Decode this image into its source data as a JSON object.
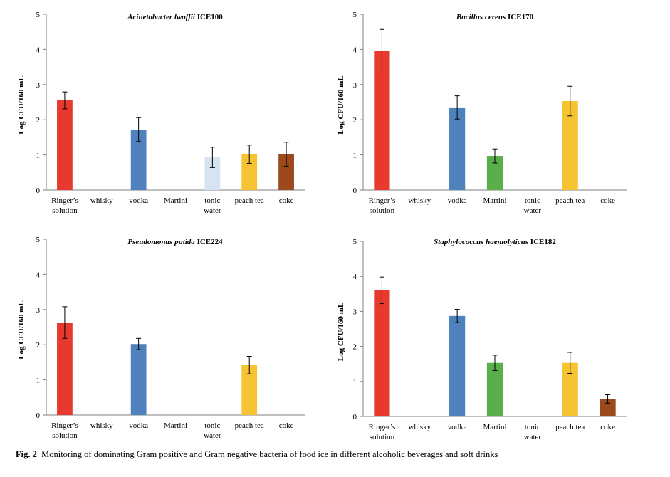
{
  "caption": {
    "label": "Fig. 2",
    "text": "Monitoring of dominating Gram positive and Gram negative bacteria of food ice in different alcoholic beverages and soft drinks"
  },
  "colors": {
    "Ringer's solution": "#e8392f",
    "whisky": "#e8392f",
    "vodka": "#4f81bd",
    "Martini": "#5aaf4a",
    "tonic water": "#d5e3f3",
    "peach tea": "#f6c333",
    "coke": "#9c4a1c"
  },
  "chart_data": [
    {
      "type": "bar",
      "title_italic": "Acinetobacter lwoffii",
      "title_rest": " ICE100",
      "ylabel": "Log CFU/160 mL",
      "ylim": [
        0,
        5
      ],
      "yticks": [
        "0",
        "1",
        "2",
        "3",
        "4",
        "5"
      ],
      "categories": [
        [
          "Ringer’s",
          "solution"
        ],
        [
          "whisky"
        ],
        [
          "vodka"
        ],
        [
          "Martini"
        ],
        [
          "tonic",
          "water"
        ],
        [
          "peach tea"
        ],
        [
          "coke"
        ]
      ],
      "category_keys": [
        "Ringer's solution",
        "whisky",
        "vodka",
        "Martini",
        "tonic water",
        "peach tea",
        "coke"
      ],
      "values": [
        2.55,
        0,
        1.72,
        0,
        0.93,
        1.02,
        1.02
      ],
      "errors": [
        0.24,
        0,
        0.34,
        0,
        0.29,
        0.26,
        0.34
      ]
    },
    {
      "type": "bar",
      "title_italic": "Bacillus cereus",
      "title_rest": " ICE170",
      "ylabel": "Log CFU/160 mL",
      "ylim": [
        0,
        5
      ],
      "yticks": [
        "0",
        "1",
        "2",
        "3",
        "4",
        "5"
      ],
      "categories": [
        [
          "Ringer’s",
          "solution"
        ],
        [
          "whisky"
        ],
        [
          "vodka"
        ],
        [
          "Martini"
        ],
        [
          "tonic",
          "water"
        ],
        [
          "peach tea"
        ],
        [
          "coke"
        ]
      ],
      "category_keys": [
        "Ringer's solution",
        "whisky",
        "vodka",
        "Martini",
        "tonic water",
        "peach tea",
        "coke"
      ],
      "values": [
        3.95,
        0,
        2.35,
        0.97,
        0,
        2.53,
        0
      ],
      "errors": [
        0.62,
        0,
        0.33,
        0.2,
        0,
        0.42,
        0
      ]
    },
    {
      "type": "bar",
      "title_italic": "Pseudomonas putida",
      "title_rest": " ICE224",
      "ylabel": "Log CFU/160 mL",
      "ylim": [
        0,
        5
      ],
      "yticks": [
        "0",
        "1",
        "2",
        "3",
        "4",
        "5"
      ],
      "categories": [
        [
          "Ringer’s",
          "solution"
        ],
        [
          "whisky"
        ],
        [
          "vodka"
        ],
        [
          "Martini"
        ],
        [
          "tonic",
          "water"
        ],
        [
          "peach tea"
        ],
        [
          "coke"
        ]
      ],
      "category_keys": [
        "Ringer's solution",
        "whisky",
        "vodka",
        "Martini",
        "tonic water",
        "peach tea",
        "coke"
      ],
      "values": [
        2.63,
        0,
        2.02,
        0,
        0,
        1.42,
        0
      ],
      "errors": [
        0.45,
        0,
        0.16,
        0,
        0,
        0.25,
        0
      ]
    },
    {
      "type": "bar",
      "title_italic": "Staphylococcus haemolyticus",
      "title_rest": " ICE182",
      "ylabel": "Log CFU/160 mL",
      "ylim": [
        0,
        5
      ],
      "yticks": [
        "0",
        "1",
        "2",
        "3",
        "4",
        "5"
      ],
      "categories": [
        [
          "Ringer’s",
          "solution"
        ],
        [
          "whisky"
        ],
        [
          "vodka"
        ],
        [
          "Martini"
        ],
        [
          "tonic",
          "water"
        ],
        [
          "peach tea"
        ],
        [
          "coke"
        ]
      ],
      "category_keys": [
        "Ringer's solution",
        "whisky",
        "vodka",
        "Martini",
        "tonic water",
        "peach tea",
        "coke"
      ],
      "values": [
        3.6,
        0,
        2.87,
        1.53,
        0,
        1.53,
        0.5
      ],
      "errors": [
        0.38,
        0,
        0.19,
        0.22,
        0,
        0.3,
        0.12
      ]
    }
  ]
}
